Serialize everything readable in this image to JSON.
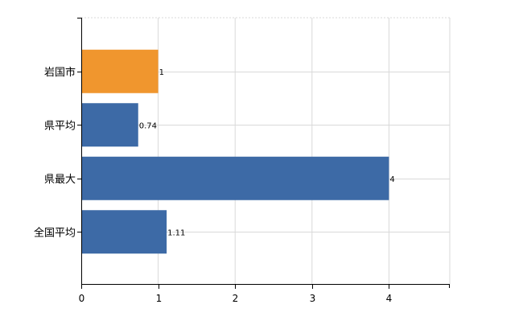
{
  "chart_data": {
    "type": "bar",
    "orientation": "horizontal",
    "categories": [
      "岩国市",
      "県平均",
      "県最大",
      "全国平均"
    ],
    "values": [
      1,
      0.74,
      4,
      1.11
    ],
    "data_labels": [
      "1",
      "0.74",
      "4",
      "1.11"
    ],
    "x_ticks": [
      "0",
      "1",
      "2",
      "3",
      "4"
    ],
    "xlim": [
      0,
      4.8
    ],
    "grid": true,
    "legend": "none",
    "title": "",
    "xlabel": "",
    "ylabel": ""
  },
  "colors": {
    "highlight_bar": "#f0962e",
    "default_bar": "#3d6aa6",
    "grid": "#d9d9d9",
    "axis": "#000000"
  },
  "highlight_category": "岩国市"
}
